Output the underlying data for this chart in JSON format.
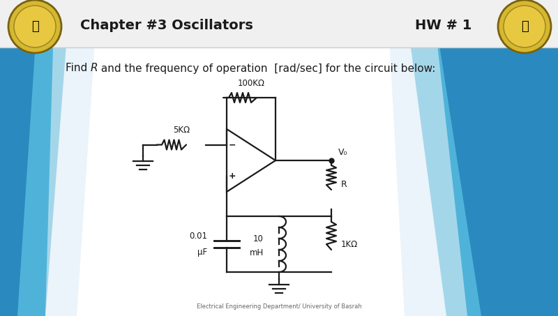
{
  "title": "Chapter #3 Oscillators",
  "hw": "HW # 1",
  "question_plain": "Find ",
  "question_r": "R",
  "question_rest": " and the frequency of operation  [rad/sec] for the circuit below:",
  "footer": "Electrical Engineering Department/ University of Basrah",
  "bg_color": "#ffffff",
  "header_bg": "#f5f5f5",
  "blue_dark": "#2a8abf",
  "blue_mid": "#4fb3d9",
  "blue_light": "#a8d8ea",
  "resistor_100k_label": "100KΩ",
  "resistor_5k_label": "5KΩ",
  "resistor_R_label": "R",
  "resistor_1k_label": "1KΩ",
  "cap_label1": "0.01",
  "cap_label2": "μF",
  "ind_label1": "10",
  "ind_label2": "mH",
  "vo_label": "V₀",
  "circuit_color": "#1a1a1a",
  "lw": 1.6
}
